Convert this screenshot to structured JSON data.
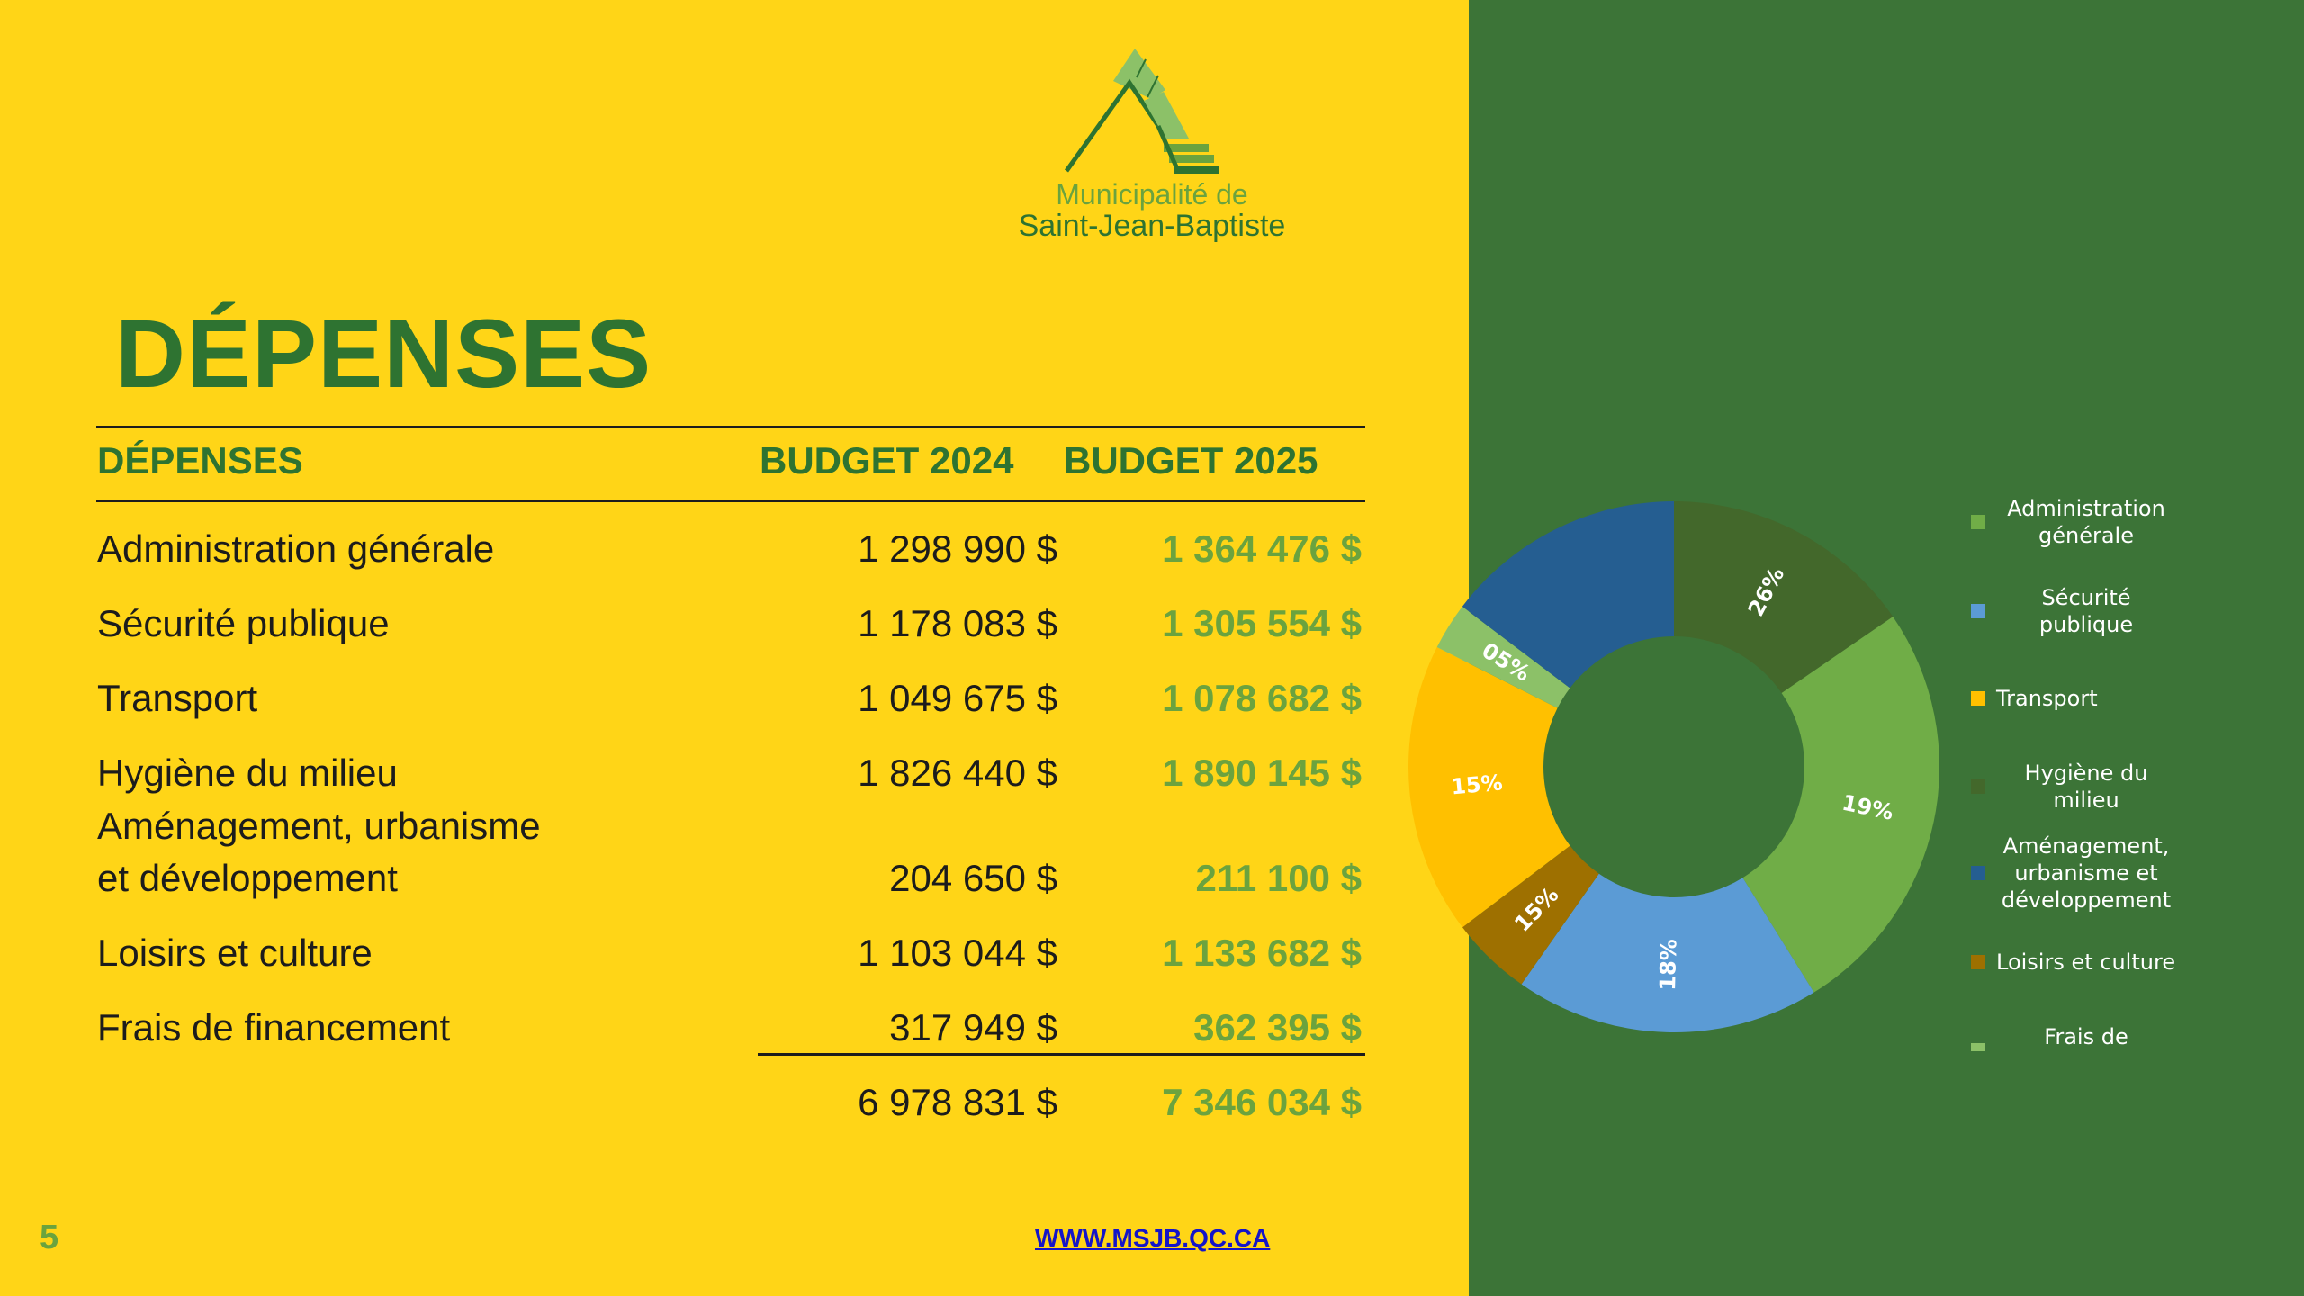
{
  "logo": {
    "line1": "Municipalité de",
    "line2": "Saint-Jean-Baptiste"
  },
  "title": "DÉPENSES",
  "table": {
    "headers": [
      "DÉPENSES",
      "BUDGET 2024",
      "BUDGET 2025"
    ],
    "rows": [
      {
        "label": "Administration générale",
        "b2024": "1 298 990 $",
        "b2025": "1 364 476 $"
      },
      {
        "label": "Sécurité publique",
        "b2024": "1 178 083 $",
        "b2025": "1 305 554 $"
      },
      {
        "label": "Transport",
        "b2024": "1 049 675 $",
        "b2025": "1 078 682 $"
      },
      {
        "label": "Hygiène du milieu",
        "b2024": "1 826 440 $",
        "b2025": "1 890 145 $"
      },
      {
        "label_line1": "Aménagement, urbanisme",
        "label_line2": "et développement",
        "b2024": "204 650 $",
        "b2025": "211 100 $"
      },
      {
        "label": "Loisirs et culture",
        "b2024": "1 103 044 $",
        "b2025": "1 133 682 $"
      },
      {
        "label": "Frais de financement",
        "b2024": "317 949 $",
        "b2025": "362 395 $"
      }
    ],
    "total": {
      "b2024": "6 978 831 $",
      "b2025": "7 346 034 $"
    }
  },
  "page_number": "5",
  "url": "WWW.MSJB.QC.CA",
  "chart_data": {
    "type": "pie",
    "donut": true,
    "categories": [
      "Administration générale",
      "Sécurité publique",
      "Transport",
      "Hygiène du milieu",
      "Aménagement, urbanisme et développement",
      "Loisirs et culture",
      "Frais de financement"
    ],
    "legend": [
      "Administration générale",
      "Sécurité publique",
      "Transport",
      "Hygiène du milieu",
      "Aménagement, urbanisme et développement",
      "Loisirs et culture",
      "Frais de financement"
    ],
    "values": [
      1890145,
      1364476,
      1305554,
      1133682,
      1078682,
      362395,
      211100
    ],
    "slice_order": [
      "Hygiène du milieu",
      "Administration générale",
      "Sécurité publique",
      "Loisirs et culture",
      "Transport",
      "Frais de financement",
      "Aménagement, urbanisme et développement"
    ],
    "data_labels": [
      "26%",
      "19%",
      "18%",
      "15%",
      "15%",
      "05%",
      ""
    ],
    "colors": {
      "Administration générale": "#70AD47",
      "Sécurité publique": "#5B9BD5",
      "Transport": "#FFC000",
      "Hygiène du milieu": "#43682B",
      "Aménagement, urbanisme et développement": "#255E91",
      "Loisirs et culture": "#9E7000",
      "Frais de financement": "#8CC168"
    },
    "legend_placement": "right"
  }
}
